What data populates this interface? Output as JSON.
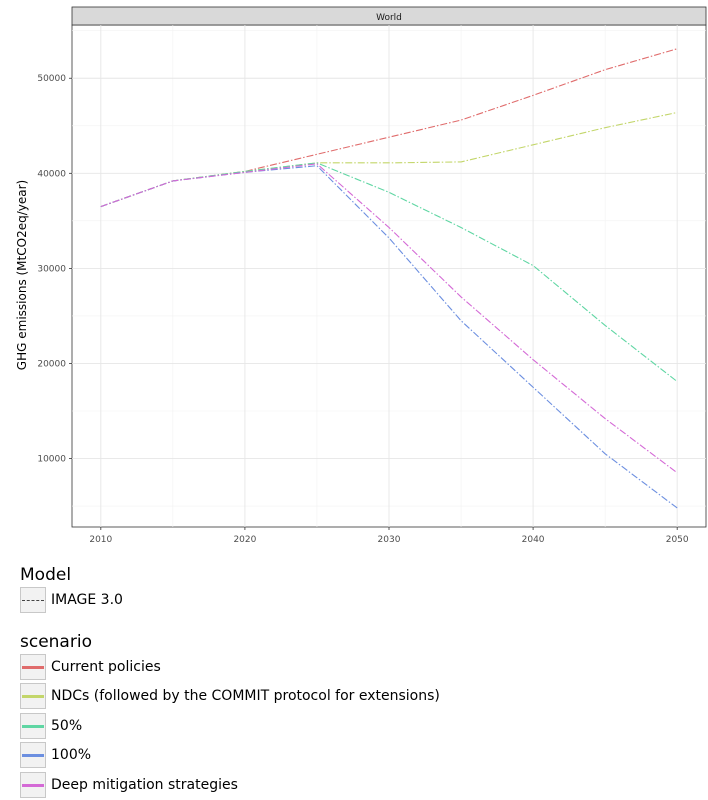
{
  "chart_data": {
    "type": "line",
    "facet_title": "World",
    "title": "",
    "xlabel": "",
    "ylabel": "GHG emissions (MtCO2eq/year)",
    "x": [
      2010,
      2015,
      2020,
      2025,
      2030,
      2035,
      2040,
      2045,
      2050
    ],
    "xticks": [
      2010,
      2020,
      2030,
      2040,
      2050
    ],
    "yticks": [
      10000,
      20000,
      30000,
      40000,
      50000
    ],
    "xlim": [
      2008,
      2052
    ],
    "ylim": [
      2800,
      55600
    ],
    "grid": true,
    "series": [
      {
        "name": "Current policies",
        "color": "#e06c6c",
        "values": [
          36500,
          39200,
          40200,
          42000,
          43800,
          45600,
          48200,
          50900,
          53100
        ]
      },
      {
        "name": "NDCs (followed by the COMMIT protocol for extensions)",
        "color": "#c3d66a",
        "values": [
          36500,
          39200,
          40200,
          41100,
          41100,
          41200,
          43000,
          44800,
          46400
        ]
      },
      {
        "name": "50%",
        "color": "#5fd6a3",
        "values": [
          36500,
          39200,
          40200,
          41100,
          38000,
          34300,
          30300,
          24000,
          18100
        ]
      },
      {
        "name": "100%",
        "color": "#6c8fe0",
        "values": [
          36500,
          39200,
          40100,
          40800,
          33200,
          24500,
          17500,
          10500,
          4800
        ]
      },
      {
        "name": "Deep mitigation strategies",
        "color": "#d46ad6",
        "values": [
          36500,
          39200,
          40100,
          41000,
          34300,
          27000,
          20400,
          14200,
          8500
        ]
      }
    ]
  },
  "legend": {
    "model_title": "Model",
    "model_label": "IMAGE 3.0",
    "scenario_title": "scenario"
  }
}
